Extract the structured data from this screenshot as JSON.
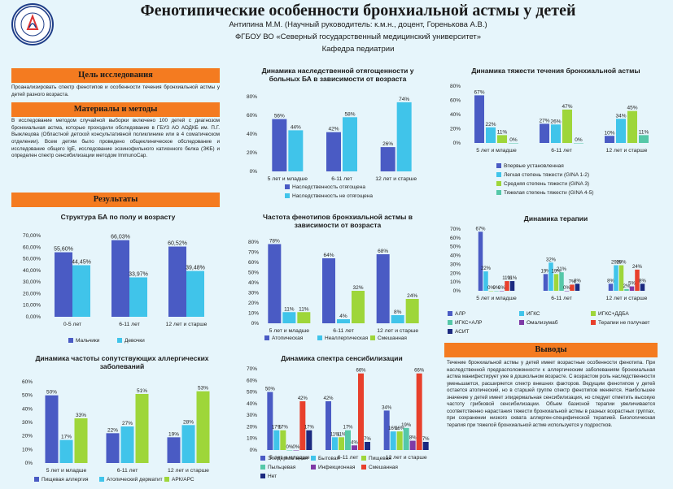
{
  "header": {
    "title": "Фенотипические особенности бронхиальной астмы у детей",
    "authors": "Антипина М.М. (Научный руководитель: к.м.н., доцент, Горенькова А.В.)",
    "affiliation": "ФГБОУ ВО «Северный государственный медицинский университет»",
    "department": "Кафедра педиатрии",
    "logo_text": "NORTHERN STATE MEDICAL UNIVERSITY"
  },
  "sections": {
    "aim": {
      "label": "Цель исследования",
      "text": "Проанализировать спектр фенотипов и особенности течения бронхиальной астмы у детей разного возраста."
    },
    "methods": {
      "label": "Материалы и методы",
      "text": "В исследование методом случайной выборки включено 100 детей с диагнозом бронхиальная астма, которые проходили обследование в ГБУЗ АО АОДКБ им. П.Г. Выжлецова (Областной детской консультативной поликлинике или в 4 соматическом отделении). Всем детям было проведено общеклиническое обследование и исследование общего IgE, исследование эозинофильного катионного белка (ЭКБ) и определен спектр сенсибилизации методом ImmunoCap."
    },
    "results": {
      "label": "Результаты"
    },
    "conclusions": {
      "label": "Выводы",
      "text": "Течение бронхиальной астмы у детей имеет возрастные особенности фенотипа. При наследственной предрасположенности к аллергическим заболеваниям бронхиальная астма манифестирует уже в дошкольном возрасте. С возрастом роль наследственности уменьшается, расширяется спектр внешних факторов. Ведущим фенотипом у детей остается атопический, но в старшей группе спектр фенотипов меняется. Наибольшее значение у детей имеет эпидермальная сенсибилизация, но следует отметить высокую частоту грибковой сенсибилизации. Объем базисной терапии увеличивается соответственно нарастания тяжести бронхиальной астмы в разных возрастных группах, при сохранении низкого охвата аллерген-специфической терапией. Биологическая терапия при тяжелой бронхиальной астме используется у подростков."
    }
  },
  "colors": {
    "dark_blue": "#4a5bc4",
    "light_blue": "#40c4ea",
    "green": "#9ed63a",
    "teal": "#55c8a8",
    "purple": "#7f3aa6",
    "red": "#e8402c",
    "navy": "#1c2a80",
    "orange": "#f47b20",
    "bg": "#e6f5fb"
  },
  "chart_data": [
    {
      "type": "bar",
      "title": "Структура БА по полу и возрасту",
      "categories": [
        "0-5 лет",
        "6-11 лет",
        "12 лет и старше"
      ],
      "series": [
        {
          "name": "Мальчики",
          "values": [
            55.6,
            66.03,
            60.52
          ],
          "labels": [
            "55,60%",
            "66,03%",
            "60,52%"
          ],
          "color": "#4a5bc4"
        },
        {
          "name": "Девочки",
          "values": [
            44.45,
            33.97,
            39.48
          ],
          "labels": [
            "44,45%",
            "33,97%",
            "39,48%"
          ],
          "color": "#40c4ea"
        }
      ],
      "yticks": [
        "0,00%",
        "10,00%",
        "20,00%",
        "30,00%",
        "40,00%",
        "50,00%",
        "60,00%",
        "70,00%"
      ],
      "ylim": [
        0,
        70
      ]
    },
    {
      "type": "bar",
      "title": "Динамика наследственной отягощенности у больных БА в зависимости от возраста",
      "categories": [
        "5 лет и младше",
        "6-11 лет",
        "12 лет и старше"
      ],
      "series": [
        {
          "name": "Наследственность отягощена",
          "values": [
            56,
            42,
            26
          ],
          "labels": [
            "56%",
            "42%",
            "26%"
          ],
          "color": "#4a5bc4"
        },
        {
          "name": "Наследственность не отягощена",
          "values": [
            44,
            58,
            74
          ],
          "labels": [
            "44%",
            "58%",
            "74%"
          ],
          "color": "#40c4ea"
        }
      ],
      "yticks": [
        "0%",
        "20%",
        "40%",
        "60%",
        "80%"
      ],
      "ylim": [
        0,
        80
      ]
    },
    {
      "type": "bar",
      "title": "Динамика тяжести течения бронхиальной астмы",
      "categories": [
        "5 лет и младше",
        "6-11 лет",
        "12 лет и старше"
      ],
      "series": [
        {
          "name": "Впервые установленная",
          "values": [
            67,
            27,
            10
          ],
          "labels": [
            "67%",
            "27%",
            "10%"
          ],
          "color": "#4a5bc4"
        },
        {
          "name": "Легкая степень тяжести (GINA 1-2)",
          "values": [
            22,
            26,
            34
          ],
          "labels": [
            "22%",
            "26%",
            "34%"
          ],
          "color": "#40c4ea"
        },
        {
          "name": "Средняя степень тяжести (GINA 3)",
          "values": [
            11,
            47,
            45
          ],
          "labels": [
            "11%",
            "47%",
            "45%"
          ],
          "color": "#9ed63a"
        },
        {
          "name": "Тяжелая степень тяжести (GINA 4-5)",
          "values": [
            0,
            0,
            11
          ],
          "labels": [
            "0%",
            "0%",
            "11%"
          ],
          "color": "#55c8a8"
        }
      ],
      "yticks": [
        "0%",
        "20%",
        "40%",
        "60%",
        "80%"
      ],
      "ylim": [
        0,
        80
      ]
    },
    {
      "type": "bar",
      "title": "Частота фенотипов бронхиальной астмы в зависимости от возраста",
      "categories": [
        "5 лет и младше",
        "6-11 лет",
        "12 лет и старше"
      ],
      "series": [
        {
          "name": "Атопическая",
          "values": [
            78,
            64,
            68
          ],
          "labels": [
            "78%",
            "64%",
            "68%"
          ],
          "color": "#4a5bc4"
        },
        {
          "name": "Неаллергическая",
          "values": [
            11,
            4,
            8
          ],
          "labels": [
            "11%",
            "4%",
            "8%"
          ],
          "color": "#40c4ea"
        },
        {
          "name": "Смешанная",
          "values": [
            11,
            32,
            24
          ],
          "labels": [
            "11%",
            "32%",
            "24%"
          ],
          "color": "#9ed63a"
        }
      ],
      "yticks": [
        "0%",
        "10%",
        "20%",
        "30%",
        "40%",
        "50%",
        "60%",
        "70%",
        "80%"
      ],
      "ylim": [
        0,
        80
      ]
    },
    {
      "type": "bar",
      "title": "Динамика терапии",
      "categories": [
        "5 лет и младше",
        "6-11 лет",
        "12 лет и старше"
      ],
      "series": [
        {
          "name": "АЛР",
          "values": [
            67,
            19,
            8
          ],
          "labels": [
            "67%",
            "19%",
            "8%"
          ],
          "color": "#4a5bc4"
        },
        {
          "name": "ИГКС",
          "values": [
            22,
            32,
            29
          ],
          "labels": [
            "22%",
            "32%",
            "29%"
          ],
          "color": "#40c4ea"
        },
        {
          "name": "ИГКС+ДДБА",
          "values": [
            0,
            19,
            29
          ],
          "labels": [
            "0%",
            "19%",
            "29%"
          ],
          "color": "#9ed63a"
        },
        {
          "name": "ИГКС+АЛР",
          "values": [
            0,
            21,
            2
          ],
          "labels": [
            "0%",
            "21%",
            "2%"
          ],
          "color": "#55c8a8"
        },
        {
          "name": "Омализумаб",
          "values": [
            0,
            0,
            5
          ],
          "labels": [
            "0%",
            "0%",
            "5%"
          ],
          "color": "#7f3aa6"
        },
        {
          "name": "Терапии не получает",
          "values": [
            11,
            7,
            24
          ],
          "labels": [
            "11%",
            "7%",
            "24%"
          ],
          "color": "#e8402c"
        },
        {
          "name": "АСИТ",
          "values": [
            11,
            8,
            8
          ],
          "labels": [
            "11%",
            "8%",
            "8%"
          ],
          "color": "#1c2a80"
        }
      ],
      "yticks": [
        "0%",
        "10%",
        "20%",
        "30%",
        "40%",
        "50%",
        "60%",
        "70%"
      ],
      "ylim": [
        0,
        70
      ]
    },
    {
      "type": "bar",
      "title": "Динамика частоты сопутствующих аллергических заболеваний",
      "categories": [
        "5 лет и младше",
        "6-11 лет",
        "12 лет и старше"
      ],
      "series": [
        {
          "name": "Пищевая аллергия",
          "values": [
            50,
            22,
            19
          ],
          "labels": [
            "50%",
            "22%",
            "19%"
          ],
          "color": "#4a5bc4"
        },
        {
          "name": "Атопический дерматит",
          "values": [
            17,
            27,
            28
          ],
          "labels": [
            "17%",
            "27%",
            "28%"
          ],
          "color": "#40c4ea"
        },
        {
          "name": "АРК/АРС",
          "values": [
            33,
            51,
            53
          ],
          "labels": [
            "33%",
            "51%",
            "53%"
          ],
          "color": "#9ed63a"
        }
      ],
      "yticks": [
        "0%",
        "10%",
        "20%",
        "30%",
        "40%",
        "50%",
        "60%"
      ],
      "ylim": [
        0,
        60
      ]
    },
    {
      "type": "bar",
      "title": "Динамика спектра сенсибилизации",
      "categories": [
        "5 лет и младше",
        "6-11 лет",
        "12 лет и старше"
      ],
      "series": [
        {
          "name": "Эпидермальная",
          "values": [
            50,
            42,
            34
          ],
          "labels": [
            "50%",
            "42%",
            "34%"
          ],
          "color": "#4a5bc4"
        },
        {
          "name": "Бытовая",
          "values": [
            17,
            11,
            16
          ],
          "labels": [
            "17%",
            "11%",
            "16%"
          ],
          "color": "#40c4ea"
        },
        {
          "name": "Пищевая",
          "values": [
            17,
            11,
            16
          ],
          "labels": [
            "17%",
            "11%",
            "16%"
          ],
          "color": "#9ed63a"
        },
        {
          "name": "Пыльцевая",
          "values": [
            0,
            17,
            19
          ],
          "labels": [
            "0%",
            "17%",
            "19%"
          ],
          "color": "#55c8a8"
        },
        {
          "name": "Инфекционная",
          "values": [
            0,
            4,
            8
          ],
          "labels": [
            "0%",
            "4%",
            "8%"
          ],
          "color": "#7f3aa6"
        },
        {
          "name": "Смешанная",
          "values": [
            42,
            66,
            66
          ],
          "labels": [
            "42%",
            "66%",
            "66%"
          ],
          "color": "#e8402c"
        },
        {
          "name": "Нет",
          "values": [
            17,
            7,
            7
          ],
          "labels": [
            "17%",
            "7%",
            "7%"
          ],
          "color": "#1c2a80"
        }
      ],
      "yticks": [
        "0%",
        "10%",
        "20%",
        "30%",
        "40%",
        "50%",
        "60%",
        "70%"
      ],
      "ylim": [
        0,
        70
      ]
    }
  ]
}
